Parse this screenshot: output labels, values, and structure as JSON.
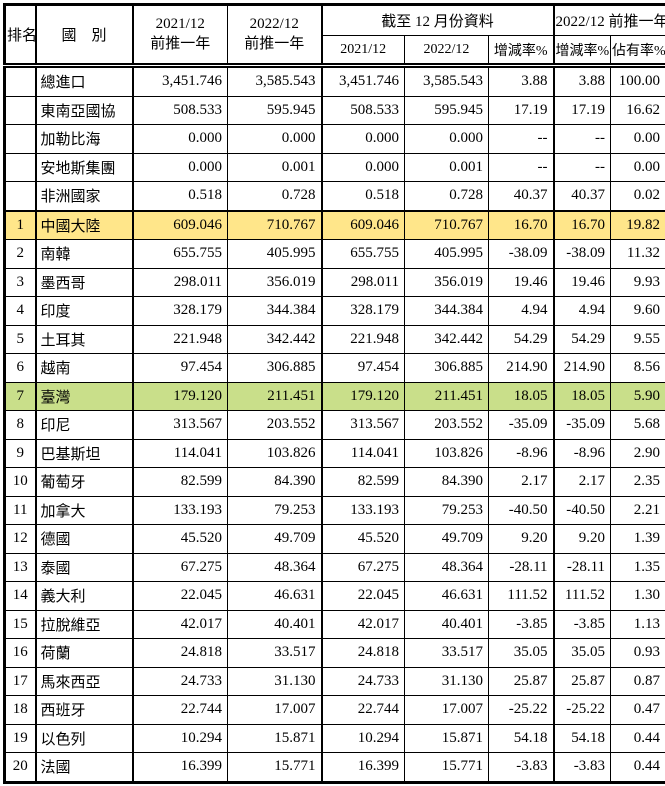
{
  "document": {
    "type": "import-country-ranking-table",
    "unit_note": "values in numeric units as shown"
  },
  "colors": {
    "highlight_yellow": "#ffe68a",
    "highlight_green": "#c9df8a",
    "border": "#000000",
    "background": "#ffffff"
  },
  "table": {
    "header": {
      "rank": "排名",
      "country": "國　別",
      "col_2021_line1": "2021/12",
      "col_2021_line2": "前推一年",
      "col_2022_line1": "2022/12",
      "col_2022_line2": "前推一年",
      "group_ytd": "截至 12 月份資料",
      "ytd_2021": "2021/12",
      "ytd_2022": "2022/12",
      "ytd_change": "增減率%",
      "group_trailing": "2022/12 前推一年",
      "trailing_change": "增減率%",
      "trailing_share": "佔有率%"
    },
    "rows": [
      {
        "rank": "",
        "country": "總進口",
        "v1": "3,451.746",
        "v2": "3,585.543",
        "v3": "3,451.746",
        "v4": "3,585.543",
        "v5": "3.88",
        "v6": "3.88",
        "v7": "100.00",
        "highlight": ""
      },
      {
        "rank": "",
        "country": "東南亞國協",
        "v1": "508.533",
        "v2": "595.945",
        "v3": "508.533",
        "v4": "595.945",
        "v5": "17.19",
        "v6": "17.19",
        "v7": "16.62",
        "highlight": ""
      },
      {
        "rank": "",
        "country": "加勒比海",
        "v1": "0.000",
        "v2": "0.000",
        "v3": "0.000",
        "v4": "0.000",
        "v5": "--",
        "v6": "--",
        "v7": "0.00",
        "highlight": ""
      },
      {
        "rank": "",
        "country": "安地斯集團",
        "v1": "0.000",
        "v2": "0.001",
        "v3": "0.000",
        "v4": "0.001",
        "v5": "--",
        "v6": "--",
        "v7": "0.00",
        "highlight": ""
      },
      {
        "rank": "",
        "country": "非洲國家",
        "v1": "0.518",
        "v2": "0.728",
        "v3": "0.518",
        "v4": "0.728",
        "v5": "40.37",
        "v6": "40.37",
        "v7": "0.02",
        "highlight": ""
      },
      {
        "rank": "1",
        "country": "中國大陸",
        "v1": "609.046",
        "v2": "710.767",
        "v3": "609.046",
        "v4": "710.767",
        "v5": "16.70",
        "v6": "16.70",
        "v7": "19.82",
        "highlight": "yellow"
      },
      {
        "rank": "2",
        "country": "南韓",
        "v1": "655.755",
        "v2": "405.995",
        "v3": "655.755",
        "v4": "405.995",
        "v5": "-38.09",
        "v6": "-38.09",
        "v7": "11.32",
        "highlight": ""
      },
      {
        "rank": "3",
        "country": "墨西哥",
        "v1": "298.011",
        "v2": "356.019",
        "v3": "298.011",
        "v4": "356.019",
        "v5": "19.46",
        "v6": "19.46",
        "v7": "9.93",
        "highlight": ""
      },
      {
        "rank": "4",
        "country": "印度",
        "v1": "328.179",
        "v2": "344.384",
        "v3": "328.179",
        "v4": "344.384",
        "v5": "4.94",
        "v6": "4.94",
        "v7": "9.60",
        "highlight": ""
      },
      {
        "rank": "5",
        "country": "土耳其",
        "v1": "221.948",
        "v2": "342.442",
        "v3": "221.948",
        "v4": "342.442",
        "v5": "54.29",
        "v6": "54.29",
        "v7": "9.55",
        "highlight": ""
      },
      {
        "rank": "6",
        "country": "越南",
        "v1": "97.454",
        "v2": "306.885",
        "v3": "97.454",
        "v4": "306.885",
        "v5": "214.90",
        "v6": "214.90",
        "v7": "8.56",
        "highlight": ""
      },
      {
        "rank": "7",
        "country": "臺灣",
        "v1": "179.120",
        "v2": "211.451",
        "v3": "179.120",
        "v4": "211.451",
        "v5": "18.05",
        "v6": "18.05",
        "v7": "5.90",
        "highlight": "green"
      },
      {
        "rank": "8",
        "country": "印尼",
        "v1": "313.567",
        "v2": "203.552",
        "v3": "313.567",
        "v4": "203.552",
        "v5": "-35.09",
        "v6": "-35.09",
        "v7": "5.68",
        "highlight": ""
      },
      {
        "rank": "9",
        "country": "巴基斯坦",
        "v1": "114.041",
        "v2": "103.826",
        "v3": "114.041",
        "v4": "103.826",
        "v5": "-8.96",
        "v6": "-8.96",
        "v7": "2.90",
        "highlight": ""
      },
      {
        "rank": "10",
        "country": "葡萄牙",
        "v1": "82.599",
        "v2": "84.390",
        "v3": "82.599",
        "v4": "84.390",
        "v5": "2.17",
        "v6": "2.17",
        "v7": "2.35",
        "highlight": ""
      },
      {
        "rank": "11",
        "country": "加拿大",
        "v1": "133.193",
        "v2": "79.253",
        "v3": "133.193",
        "v4": "79.253",
        "v5": "-40.50",
        "v6": "-40.50",
        "v7": "2.21",
        "highlight": ""
      },
      {
        "rank": "12",
        "country": "德國",
        "v1": "45.520",
        "v2": "49.709",
        "v3": "45.520",
        "v4": "49.709",
        "v5": "9.20",
        "v6": "9.20",
        "v7": "1.39",
        "highlight": ""
      },
      {
        "rank": "13",
        "country": "泰國",
        "v1": "67.275",
        "v2": "48.364",
        "v3": "67.275",
        "v4": "48.364",
        "v5": "-28.11",
        "v6": "-28.11",
        "v7": "1.35",
        "highlight": ""
      },
      {
        "rank": "14",
        "country": "義大利",
        "v1": "22.045",
        "v2": "46.631",
        "v3": "22.045",
        "v4": "46.631",
        "v5": "111.52",
        "v6": "111.52",
        "v7": "1.30",
        "highlight": ""
      },
      {
        "rank": "15",
        "country": "拉脫維亞",
        "v1": "42.017",
        "v2": "40.401",
        "v3": "42.017",
        "v4": "40.401",
        "v5": "-3.85",
        "v6": "-3.85",
        "v7": "1.13",
        "highlight": ""
      },
      {
        "rank": "16",
        "country": "荷蘭",
        "v1": "24.818",
        "v2": "33.517",
        "v3": "24.818",
        "v4": "33.517",
        "v5": "35.05",
        "v6": "35.05",
        "v7": "0.93",
        "highlight": ""
      },
      {
        "rank": "17",
        "country": "馬來西亞",
        "v1": "24.733",
        "v2": "31.130",
        "v3": "24.733",
        "v4": "31.130",
        "v5": "25.87",
        "v6": "25.87",
        "v7": "0.87",
        "highlight": ""
      },
      {
        "rank": "18",
        "country": "西班牙",
        "v1": "22.744",
        "v2": "17.007",
        "v3": "22.744",
        "v4": "17.007",
        "v5": "-25.22",
        "v6": "-25.22",
        "v7": "0.47",
        "highlight": ""
      },
      {
        "rank": "19",
        "country": "以色列",
        "v1": "10.294",
        "v2": "15.871",
        "v3": "10.294",
        "v4": "15.871",
        "v5": "54.18",
        "v6": "54.18",
        "v7": "0.44",
        "highlight": ""
      },
      {
        "rank": "20",
        "country": "法國",
        "v1": "16.399",
        "v2": "15.771",
        "v3": "16.399",
        "v4": "15.771",
        "v5": "-3.83",
        "v6": "-3.83",
        "v7": "0.44",
        "highlight": ""
      }
    ]
  }
}
